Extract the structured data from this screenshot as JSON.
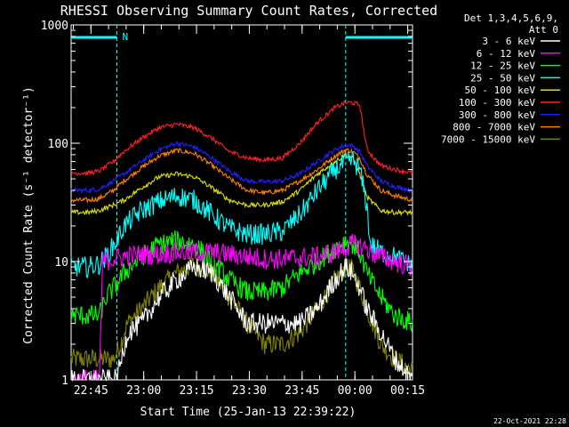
{
  "chart_data": {
    "type": "line",
    "title": "RHESSI Observing Summary Count Rates, Corrected",
    "xlabel": "Start Time (25-Jan-13 22:39:22)",
    "ylabel": "Corrected Count Rate (s⁻¹ detector⁻¹)",
    "ylim": [
      1,
      1000
    ],
    "yscale": "log",
    "xlim_minutes_after_start": [
      0,
      97
    ],
    "x_tick_labels": [
      "22:45",
      "23:00",
      "23:15",
      "23:30",
      "23:45",
      "00:00",
      "00:15"
    ],
    "x_tick_minutes_after_start": [
      5.63,
      20.63,
      35.63,
      50.63,
      65.63,
      80.63,
      95.63
    ],
    "y_tick_labels": [
      "1",
      "10",
      "100",
      "1000"
    ],
    "y_tick_values": [
      1,
      10,
      100,
      1000
    ],
    "legend_placement": "top-right, outside plot",
    "legend_header": [
      "Det 1,3,4,5,6,9,",
      "Att 0"
    ],
    "night_label": "N",
    "night_intervals_minutes_after_start": [
      [
        -1,
        13
      ],
      [
        78,
        97
      ]
    ],
    "series": [
      {
        "name": "3 - 6 keV",
        "color": "#ffffff",
        "x": [
          0,
          8,
          13,
          16,
          20,
          25,
          30,
          35,
          40,
          45,
          50,
          55,
          60,
          65,
          70,
          75,
          78,
          80,
          82,
          84,
          88,
          92,
          97
        ],
        "y": [
          1,
          1,
          1,
          2.5,
          3,
          5,
          7,
          9,
          8,
          5,
          3,
          3,
          3,
          3,
          4,
          7,
          9,
          8,
          6,
          4,
          2.5,
          1.5,
          1
        ]
      },
      {
        "name": "6 - 12 keV",
        "color": "#ff00ff",
        "x": [
          0,
          5,
          8,
          9,
          12,
          15,
          20,
          25,
          30,
          35,
          40,
          45,
          50,
          55,
          60,
          65,
          70,
          75,
          78,
          80,
          82,
          84,
          85,
          88,
          92,
          97
        ],
        "y": [
          1,
          1,
          1,
          10,
          10.5,
          11,
          11.5,
          11.5,
          12,
          12,
          12,
          11.5,
          11,
          10.5,
          10.5,
          10.8,
          11,
          12,
          13,
          14,
          13.5,
          13,
          12,
          11,
          10,
          9
        ]
      },
      {
        "name": "12 - 25 keV",
        "color": "#00ff00",
        "x": [
          0,
          5,
          8,
          10,
          13,
          15,
          20,
          25,
          30,
          35,
          40,
          45,
          50,
          55,
          60,
          65,
          70,
          75,
          78,
          80,
          82,
          84,
          88,
          92,
          97
        ],
        "y": [
          3.5,
          3.5,
          3.5,
          5,
          6.5,
          8,
          11,
          14,
          15,
          14,
          10,
          7,
          5.5,
          5.5,
          6,
          8,
          10,
          13,
          15,
          14,
          12,
          8,
          5,
          3.5,
          3
        ]
      },
      {
        "name": "25 - 50 keV",
        "color": "#00ffff",
        "x": [
          0,
          5,
          8,
          10,
          13,
          15,
          20,
          25,
          30,
          35,
          40,
          45,
          50,
          55,
          60,
          65,
          70,
          75,
          78,
          80,
          82,
          84,
          85,
          88,
          92,
          97
        ],
        "y": [
          9,
          9,
          9.5,
          11,
          15,
          20,
          27,
          32,
          36,
          33,
          25,
          19,
          17,
          17,
          18,
          25,
          40,
          60,
          68,
          72,
          60,
          30,
          14,
          12,
          11,
          9
        ]
      },
      {
        "name": "50 - 100 keV",
        "color": "#e0e000",
        "x": [
          0,
          5,
          8,
          12,
          15,
          20,
          25,
          30,
          35,
          40,
          45,
          50,
          55,
          60,
          65,
          70,
          75,
          78,
          80,
          82,
          84,
          88,
          92,
          97
        ],
        "y": [
          26,
          26,
          27,
          30,
          33,
          42,
          52,
          55,
          52,
          42,
          33,
          30,
          30,
          32,
          40,
          55,
          70,
          80,
          75,
          55,
          35,
          27,
          26,
          26
        ]
      },
      {
        "name": "100 - 300 keV",
        "color": "#ff2020",
        "x": [
          0,
          5,
          8,
          12,
          15,
          20,
          25,
          30,
          35,
          40,
          45,
          50,
          55,
          60,
          65,
          70,
          75,
          78,
          80,
          82,
          84,
          86,
          88,
          92,
          97
        ],
        "y": [
          56,
          56,
          58,
          70,
          85,
          110,
          135,
          145,
          135,
          110,
          85,
          75,
          72,
          75,
          100,
          150,
          200,
          220,
          220,
          210,
          90,
          75,
          65,
          60,
          56
        ]
      },
      {
        "name": "300 - 800 keV",
        "color": "#2020ff",
        "x": [
          0,
          5,
          8,
          12,
          15,
          20,
          25,
          30,
          35,
          40,
          45,
          50,
          55,
          60,
          65,
          70,
          75,
          78,
          80,
          82,
          84,
          88,
          92,
          97
        ],
        "y": [
          40,
          40,
          41,
          48,
          55,
          70,
          88,
          100,
          93,
          75,
          58,
          48,
          47,
          48,
          55,
          70,
          88,
          97,
          95,
          85,
          65,
          48,
          43,
          40
        ]
      },
      {
        "name": "800 - 7000 keV",
        "color": "#ff8000",
        "x": [
          0,
          5,
          8,
          12,
          15,
          20,
          25,
          30,
          35,
          40,
          45,
          50,
          55,
          60,
          65,
          70,
          75,
          78,
          80,
          82,
          84,
          88,
          92,
          97
        ],
        "y": [
          33,
          33,
          34,
          40,
          48,
          62,
          78,
          87,
          82,
          65,
          50,
          40,
          38,
          40,
          48,
          60,
          78,
          88,
          85,
          75,
          55,
          40,
          36,
          33
        ]
      },
      {
        "name": "7000 - 15000 keV",
        "color": "#808000",
        "x": [
          0,
          8,
          12,
          14,
          16,
          20,
          25,
          30,
          35,
          40,
          45,
          50,
          55,
          60,
          65,
          70,
          75,
          78,
          80,
          82,
          84,
          88,
          92,
          97
        ],
        "y": [
          1.5,
          1.5,
          1.5,
          2,
          3,
          4,
          6,
          8,
          9.5,
          8,
          5,
          3,
          2,
          2,
          2.5,
          4,
          7,
          9,
          8.5,
          6,
          4,
          2,
          1.5,
          1.2
        ]
      }
    ]
  },
  "footer": {
    "timestamp": "22-Oct-2021 22:28"
  }
}
